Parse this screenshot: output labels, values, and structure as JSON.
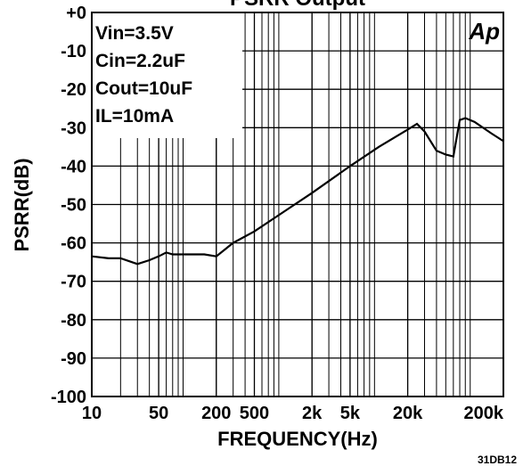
{
  "chart_data": {
    "type": "line",
    "title": "PSRR Output",
    "xlabel": "FREQUENCY(Hz)",
    "ylabel": "PSRR(dB)",
    "xscale": "log",
    "grid": true,
    "xlim": [
      10,
      200000
    ],
    "ylim": [
      -100,
      0
    ],
    "xticks": [
      10,
      50,
      200,
      500,
      {
        "value": 2000,
        "label": "2k"
      },
      {
        "value": 5000,
        "label": "5k"
      },
      {
        "value": 20000,
        "label": "20k"
      },
      {
        "value": 200000,
        "label": "200k"
      }
    ],
    "yticks": [
      {
        "value": 0,
        "label": "+0"
      },
      -10,
      -20,
      -30,
      -40,
      -50,
      -60,
      -70,
      -80,
      -90,
      -100
    ],
    "annotations": [
      "Vin=3.5V",
      "Cin=2.2uF",
      "Cout=10uF",
      "IL=10mA"
    ],
    "logo": "Ap",
    "figure_id": "31DB12",
    "x": [
      10,
      15,
      20,
      30,
      40,
      50,
      60,
      70,
      100,
      150,
      200,
      300,
      500,
      1000,
      2000,
      5000,
      10000,
      20000,
      25000,
      30000,
      40000,
      50000,
      60000,
      70000,
      80000,
      100000,
      150000,
      200000
    ],
    "series": [
      {
        "name": "PSRR",
        "color": "#000000",
        "values": [
          -63.5,
          -64,
          -64,
          -65.5,
          -64.5,
          -63.5,
          -62.5,
          -63,
          -63,
          -63,
          -63.5,
          -60,
          -57,
          -52,
          -47,
          -40,
          -35,
          -30.5,
          -29,
          -31,
          -36,
          -37,
          -37.5,
          -28,
          -27.5,
          -28.5,
          -31.5,
          -33.5
        ]
      }
    ]
  }
}
